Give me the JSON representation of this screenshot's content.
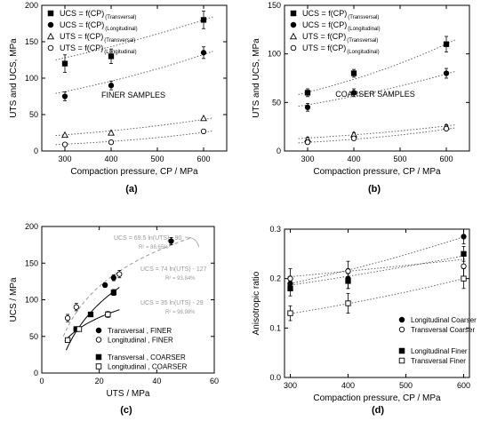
{
  "chart_data": [
    {
      "panel": "(a)",
      "type": "scatter",
      "xlabel": "Compaction pressure, CP  /  MPa",
      "ylabel": "UTS and UCS, MPa",
      "xlim": [
        250,
        650
      ],
      "ylim": [
        0,
        200
      ],
      "xticks": [
        300,
        400,
        500,
        600
      ],
      "yticks": [
        0,
        50,
        100,
        150,
        200
      ],
      "annotation": "FINER SAMPLES",
      "legend_position": "top-left",
      "series": [
        {
          "name": "UCS = f(CP)",
          "sub": "(Transversal)",
          "marker": "filled-square",
          "x": [
            300,
            400,
            600
          ],
          "y": [
            120,
            130,
            180
          ],
          "err": [
            12,
            10,
            12
          ],
          "fit": {
            "type": "exp",
            "a": 90.92,
            "b": 0.001138
          }
        },
        {
          "name": "UCS = f(CP)",
          "sub": "(Longitudinal)",
          "marker": "filled-circle",
          "x": [
            300,
            400,
            600
          ],
          "y": [
            75,
            90,
            135
          ],
          "err": [
            6,
            6,
            8
          ],
          "fit": {
            "type": "exp",
            "a": 50.24,
            "b": 0.001616
          }
        },
        {
          "name": "UTS = f(CP)",
          "sub": "(Transversal)",
          "marker": "open-triangle",
          "x": [
            300,
            400,
            600
          ],
          "y": [
            22,
            25,
            45
          ],
          "err": [
            0,
            0,
            0
          ],
          "fit": {
            "type": "exp",
            "a": 11.36,
            "b": 0.002232
          }
        },
        {
          "name": "UTS = f(CP)",
          "sub": "(Longitudinal)",
          "marker": "open-circle",
          "x": [
            300,
            400,
            600
          ],
          "y": [
            9,
            12,
            27
          ],
          "err": [
            0,
            0,
            0
          ],
          "fit": {
            "type": "exp",
            "a": 3.43,
            "b": 0.003357
          }
        }
      ]
    },
    {
      "panel": "(b)",
      "type": "scatter",
      "xlabel": "Compaction pressure, CP  /  MPa",
      "ylabel": "UTS and UCS, MPa",
      "xlim": [
        250,
        650
      ],
      "ylim": [
        0,
        150
      ],
      "xticks": [
        300,
        400,
        500,
        600
      ],
      "yticks": [
        0,
        50,
        100,
        150
      ],
      "annotation": "COARSER SAMPLES",
      "legend_position": "top-left",
      "series": [
        {
          "name": "UCS = f(CP)",
          "sub": "(Transversal)",
          "marker": "filled-square",
          "x": [
            300,
            400,
            600
          ],
          "y": [
            60,
            80,
            110
          ],
          "err": [
            4,
            4,
            8
          ],
          "fit": {
            "type": "exp",
            "a": 33.2,
            "b": 0.002
          }
        },
        {
          "name": "UCS = f(CP)",
          "sub": "(Longitudinal)",
          "marker": "filled-circle",
          "x": [
            300,
            400,
            600
          ],
          "y": [
            45,
            60,
            80
          ],
          "err": [
            4,
            4,
            5
          ],
          "fit": {
            "type": "exp",
            "a": 28.6,
            "b": 0.0017
          }
        },
        {
          "name": "UTS = f(CP)",
          "sub": "(Transversal)",
          "marker": "open-triangle",
          "x": [
            300,
            400,
            600
          ],
          "y": [
            12,
            17,
            25
          ],
          "err": [
            2,
            2,
            2
          ],
          "fit": {
            "type": "exp",
            "a": 6.9,
            "b": 0.0022
          }
        },
        {
          "name": "UTS = f(CP)",
          "sub": "(Longitudinal)",
          "marker": "open-circle",
          "x": [
            300,
            400,
            600
          ],
          "y": [
            9,
            13,
            23
          ],
          "err": [
            2,
            2,
            2
          ],
          "fit": {
            "type": "exp",
            "a": 3.5,
            "b": 0.0031
          }
        }
      ]
    },
    {
      "panel": "(c)",
      "type": "scatter",
      "xlabel": "UTS  /  MPa",
      "ylabel": "UCS  /  MPa",
      "xlim": [
        0,
        60
      ],
      "ylim": [
        0,
        200
      ],
      "xticks": [
        0,
        20,
        40,
        60
      ],
      "yticks": [
        0,
        50,
        100,
        150,
        200
      ],
      "legend_position": "bottom-right",
      "series": [
        {
          "name": "Transversal , FINER",
          "marker": "filled-circle",
          "x": [
            12,
            22,
            25,
            45
          ],
          "y": [
            60,
            120,
            130,
            180
          ],
          "err": [
            3,
            3,
            4,
            5
          ]
        },
        {
          "name": "Longitudinal , FINER",
          "marker": "open-circle",
          "x": [
            9,
            12,
            27
          ],
          "y": [
            75,
            90,
            135
          ],
          "err": [
            5,
            5,
            5
          ]
        },
        {
          "name": "Transversal , COARSER",
          "marker": "filled-square",
          "x": [
            12,
            17,
            25
          ],
          "y": [
            60,
            80,
            110
          ],
          "err": [
            3,
            3,
            4
          ]
        },
        {
          "name": "Longitudinal , COARSER",
          "marker": "open-square",
          "x": [
            9,
            13,
            23
          ],
          "y": [
            45,
            60,
            80
          ],
          "err": [
            3,
            3,
            4
          ]
        }
      ],
      "fits": [
        {
          "equation": "UCS =  69.5 ln(UTS) - 90",
          "r2": "R² = 86.65%",
          "a": 69.5,
          "b": -90,
          "xrange": [
            7.5,
            52
          ],
          "color": "#999999",
          "dash": "4,3"
        },
        {
          "equation": "UCS =  74 ln(UTS) - 127",
          "r2": "R² = 93.84%",
          "a": 74,
          "b": -127,
          "xrange": [
            8.5,
            27
          ],
          "color": "#000000",
          "dash": ""
        },
        {
          "equation": "UCS =  35 ln(UTS) - 29",
          "r2": "R² = 98.98%",
          "a": 35,
          "b": -29,
          "xrange": [
            8,
            27
          ],
          "color": "#000000",
          "dash": ""
        }
      ]
    },
    {
      "panel": "(d)",
      "type": "scatter",
      "xlabel": "Compaction pressure, CP  /  MPa",
      "ylabel": "Anisotropic ratio",
      "xlim": [
        290,
        610
      ],
      "ylim": [
        0,
        0.3
      ],
      "xticks": [
        300,
        400,
        500,
        600
      ],
      "yticks": [
        0.0,
        0.1,
        0.2,
        0.3
      ],
      "legend_position": "bottom-right",
      "series": [
        {
          "name": "Longitudinal Coarser",
          "marker": "filled-circle",
          "x": [
            300,
            400,
            600
          ],
          "y": [
            0.19,
            0.2,
            0.285
          ],
          "err": [
            0.015,
            0.02,
            0.015
          ],
          "fit": {
            "type": "exp",
            "a": 0.1266,
            "b": 0.00135
          }
        },
        {
          "name": "Transversal Coarser",
          "marker": "open-circle",
          "x": [
            300,
            400,
            600
          ],
          "y": [
            0.2,
            0.215,
            0.225
          ],
          "err": [
            0.02,
            0.02,
            0.02
          ],
          "fit": {
            "type": "exp",
            "a": 0.1739,
            "b": 0.00053
          }
        },
        {
          "name": "Longitudinal Finer",
          "marker": "filled-square",
          "x": [
            300,
            400,
            600
          ],
          "y": [
            0.18,
            0.195,
            0.25
          ],
          "err": [
            0.015,
            0.015,
            0.015
          ],
          "fit": {
            "type": "exp",
            "a": 0.1417,
            "b": 0.00092
          }
        },
        {
          "name": "Transversal Finer",
          "marker": "open-square",
          "x": [
            300,
            400,
            600
          ],
          "y": [
            0.13,
            0.15,
            0.2
          ],
          "err": [
            0.015,
            0.02,
            0.02
          ],
          "fit": {
            "type": "exp",
            "a": 0.0833,
            "b": 0.00146
          }
        }
      ]
    }
  ]
}
